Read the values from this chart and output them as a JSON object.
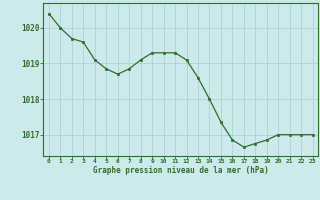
{
  "x": [
    0,
    1,
    2,
    3,
    4,
    5,
    6,
    7,
    8,
    9,
    10,
    11,
    12,
    13,
    14,
    15,
    16,
    17,
    18,
    19,
    20,
    21,
    22,
    23
  ],
  "y": [
    1020.4,
    1020.0,
    1019.7,
    1019.6,
    1019.1,
    1018.85,
    1018.7,
    1018.85,
    1019.1,
    1019.3,
    1019.3,
    1019.3,
    1019.1,
    1018.6,
    1018.0,
    1017.35,
    1016.85,
    1016.65,
    1016.75,
    1016.85,
    1017.0,
    1017.0,
    1017.0,
    1017.0
  ],
  "line_color": "#2d6e2d",
  "marker_color": "#2d6e2d",
  "bg_color": "#cceaea",
  "grid_color": "#aad4d4",
  "border_color": "#2d6e2d",
  "xlabel": "Graphe pression niveau de la mer (hPa)",
  "xlabel_color": "#2d6e2d",
  "tick_color": "#2d6e2d",
  "ylim": [
    1016.4,
    1020.7
  ],
  "xlim": [
    -0.5,
    23.5
  ],
  "yticks": [
    1017,
    1018,
    1019,
    1020
  ],
  "xticks": [
    0,
    1,
    2,
    3,
    4,
    5,
    6,
    7,
    8,
    9,
    10,
    11,
    12,
    13,
    14,
    15,
    16,
    17,
    18,
    19,
    20,
    21,
    22,
    23
  ]
}
